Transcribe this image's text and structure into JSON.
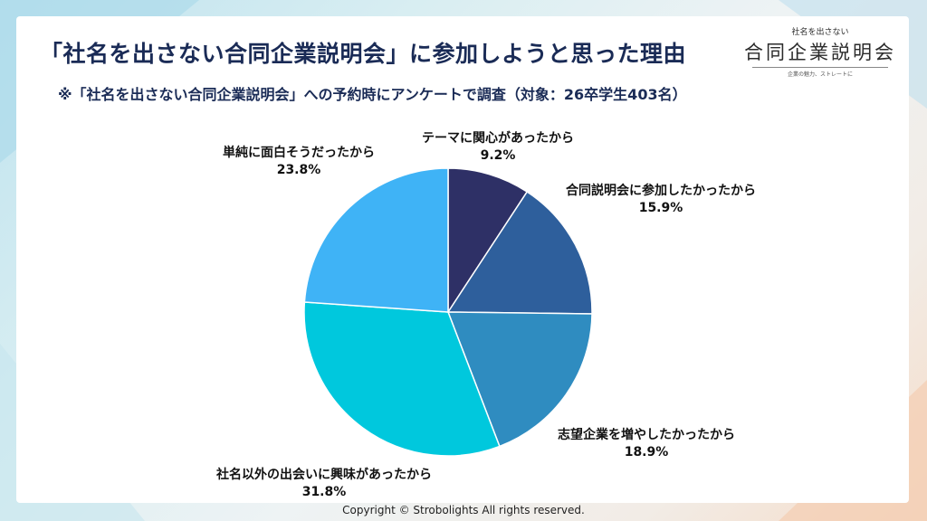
{
  "title": "「社名を出さない合同企業説明会」に参加しようと思った理由",
  "subtitle": "※「社名を出さない合同企業説明会」への予約時にアンケートで調査（対象：26卒学生403名）",
  "logo": {
    "top": "社名を出さない",
    "main": "合同企業説明会",
    "tagline": "企業の魅力、ストレートに"
  },
  "copyright": "Copyright © Strobolights All rights reserved.",
  "chart_data": {
    "type": "pie",
    "title": "",
    "start_angle_deg": 0,
    "direction": "clockwise",
    "slices": [
      {
        "label": "テーマに関心があったから",
        "value": 9.2,
        "display": "9.2%",
        "color": "#2e3066"
      },
      {
        "label": "合同説明会に参加したかったから",
        "value": 15.9,
        "display": "15.9%",
        "color": "#2e5f9c"
      },
      {
        "label": "志望企業を増やしたかったから",
        "value": 18.9,
        "display": "18.9%",
        "color": "#2f8cc0"
      },
      {
        "label": "社名以外の出会いに興味があったから",
        "value": 31.8,
        "display": "31.8%",
        "color": "#00c8dd"
      },
      {
        "label": "単純に面白そうだったから",
        "value": 23.8,
        "display": "23.8%",
        "color": "#3fb3f6"
      }
    ]
  }
}
